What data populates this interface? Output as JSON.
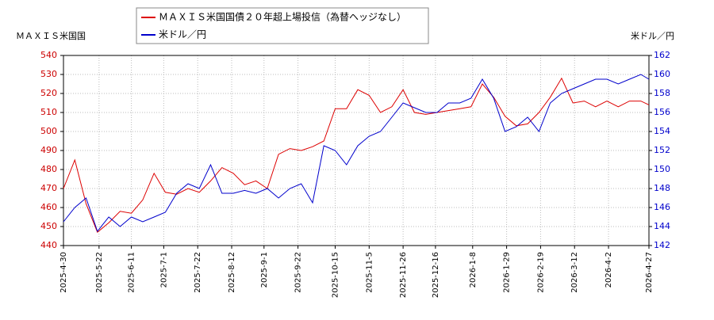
{
  "chart_data": {
    "type": "line",
    "y_label": "ＭＡＸＩＳ米国国",
    "y2_label": "米ドル／円",
    "x": [
      "2025-4-30",
      "2025-5-7",
      "2025-5-14",
      "2025-5-21",
      "2025-5-28",
      "2025-6-4",
      "2025-6-11",
      "2025-6-18",
      "2025-6-25",
      "2025-7-2",
      "2025-7-9",
      "2025-7-16",
      "2025-7-23",
      "2025-7-30",
      "2025-8-6",
      "2025-8-13",
      "2025-8-20",
      "2025-8-27",
      "2025-9-3",
      "2025-9-10",
      "2025-9-17",
      "2025-9-24",
      "2025-10-1",
      "2025-10-8",
      "2025-10-15",
      "2025-10-22",
      "2025-10-29",
      "2025-11-5",
      "2025-11-12",
      "2025-11-19",
      "2025-11-26",
      "2025-12-3",
      "2025-12-10",
      "2025-12-17",
      "2025-12-24",
      "2025-12-31",
      "2026-1-7",
      "2026-1-14",
      "2026-1-21",
      "2026-1-28",
      "2026-2-4",
      "2026-2-11",
      "2026-2-18",
      "2026-2-25",
      "2026-3-4",
      "2026-3-11",
      "2026-3-18",
      "2026-3-25",
      "2026-4-1",
      "2026-4-8",
      "2026-4-15",
      "2026-4-22",
      "2026-4-27"
    ],
    "series": [
      {
        "name": "ＭＡＸＩＳ米国国債２０年超上場投信（為替ヘッジなし）",
        "color": "#dd0000",
        "values": [
          470,
          485,
          462,
          447,
          452,
          458,
          457,
          464,
          478,
          468,
          467,
          470,
          468,
          474,
          481,
          478,
          472,
          474,
          470,
          488,
          491,
          490,
          492,
          495,
          512,
          512,
          522,
          519,
          510,
          513,
          522,
          510,
          509,
          510,
          511,
          512,
          513,
          525,
          518,
          508,
          503,
          504,
          510,
          518,
          528,
          515,
          516,
          513,
          516,
          513,
          516,
          516,
          514
        ]
      },
      {
        "name": "米ドル／円",
        "color": "#0000cc",
        "axis": "y2",
        "values": [
          144.5,
          146,
          147,
          143.5,
          145,
          144,
          145,
          144.5,
          145,
          145.5,
          147.5,
          148.5,
          148,
          150.5,
          147.5,
          147.5,
          147.8,
          147.5,
          148,
          147,
          148,
          148.5,
          146.5,
          152.5,
          152,
          150.5,
          152.5,
          153.5,
          154,
          155.5,
          157,
          156.5,
          156,
          156,
          157,
          157,
          157.5,
          159.5,
          157.5,
          154,
          154.5,
          155.5,
          154,
          157,
          158,
          158.5,
          159,
          159.5,
          159.5,
          159,
          159.5,
          160,
          159.5
        ]
      }
    ],
    "xlim": [
      "2025-4-30",
      "2026-4-27"
    ],
    "xticks": [
      "2025-4-30",
      "2025-5-22",
      "2025-6-11",
      "2025-7-1",
      "2025-7-22",
      "2025-8-12",
      "2025-9-1",
      "2025-9-22",
      "2025-10-15",
      "2025-11-5",
      "2025-11-26",
      "2025-12-16",
      "2026-1-8",
      "2026-1-29",
      "2026-2-19",
      "2026-3-12",
      "2026-4-2",
      "2026-4-27"
    ],
    "ylim": [
      440,
      540
    ],
    "yticks": [
      440,
      450,
      460,
      470,
      480,
      490,
      500,
      510,
      520,
      530,
      540
    ],
    "y2lim": [
      142,
      162
    ],
    "y2ticks": [
      142,
      144,
      146,
      148,
      150,
      152,
      154,
      156,
      158,
      160,
      162
    ],
    "grid": true
  }
}
